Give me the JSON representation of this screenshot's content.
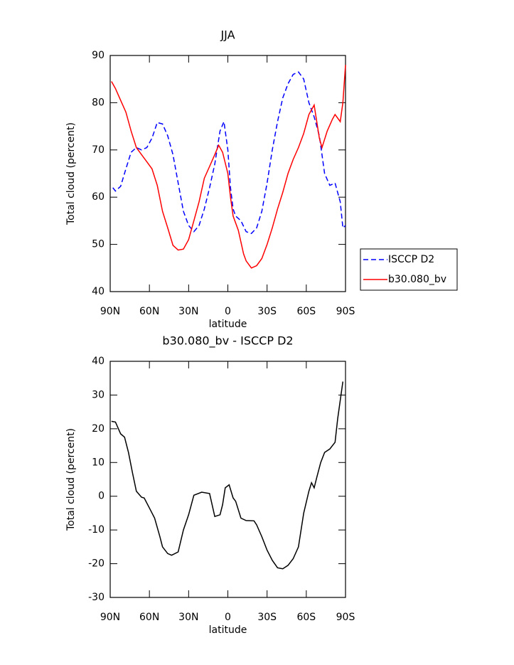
{
  "chart_data": [
    {
      "type": "line",
      "title": "JJA",
      "xlabel": "latitude",
      "ylabel": "Total cloud (percent)",
      "xlim": [
        -90,
        90
      ],
      "xticks": [
        {
          "value": -90,
          "label": "90N"
        },
        {
          "value": -60,
          "label": "60N"
        },
        {
          "value": -30,
          "label": "30N"
        },
        0,
        {
          "value": 30,
          "label": "30S"
        },
        {
          "value": 60,
          "label": "60S"
        },
        {
          "value": 90,
          "label": "90S"
        }
      ],
      "ylim": [
        40,
        90
      ],
      "yticks": [
        40,
        50,
        60,
        70,
        80,
        90
      ],
      "legend": "outside right",
      "series": [
        {
          "name": "ISCCP D2",
          "color": "#0000ff",
          "dash": true,
          "x": [
            -88,
            -86,
            -82,
            -78,
            -74,
            -70,
            -66,
            -62,
            -58,
            -54,
            -50,
            -46,
            -42,
            -38,
            -34,
            -30,
            -26,
            -22,
            -18,
            -14,
            -10,
            -6,
            -3,
            0,
            2,
            4,
            6,
            10,
            14,
            18,
            22,
            26,
            30,
            34,
            38,
            42,
            46,
            50,
            54,
            58,
            62,
            66,
            70,
            74,
            78,
            82,
            86,
            88,
            90
          ],
          "values": [
            62,
            61.3,
            62.3,
            66,
            69.5,
            70.5,
            70,
            70.5,
            72.5,
            75.8,
            75.5,
            73,
            69,
            63,
            57,
            54,
            52.7,
            54,
            57.5,
            62,
            67,
            74,
            76,
            70,
            62,
            57.5,
            56,
            55,
            52.7,
            52.3,
            53.5,
            57,
            63,
            70,
            76,
            81,
            84,
            86,
            86.5,
            85,
            80,
            77,
            73,
            65,
            62.5,
            63,
            59,
            53.5,
            54
          ]
        },
        {
          "name": "b30.080_bv",
          "color": "#ff0000",
          "dash": false,
          "x": [
            -89,
            -86,
            -82,
            -78,
            -74,
            -70,
            -66,
            -62,
            -58,
            -54,
            -50,
            -46,
            -42,
            -38,
            -34,
            -30,
            -26,
            -22,
            -18,
            -14,
            -10,
            -7,
            -4,
            0,
            2,
            4,
            8,
            12,
            14,
            18,
            22,
            26,
            30,
            34,
            38,
            42,
            46,
            50,
            54,
            58,
            62,
            66,
            70,
            72,
            76,
            80,
            82,
            86,
            88,
            90
          ],
          "values": [
            84.5,
            83,
            80.5,
            78,
            74,
            70.5,
            69,
            67.5,
            66,
            62.5,
            57,
            53.5,
            49.8,
            48.8,
            49,
            51,
            55,
            59,
            64,
            66.5,
            69,
            71,
            69.5,
            65,
            60,
            56,
            53,
            48,
            46.5,
            45,
            45.5,
            47,
            50,
            53.5,
            57.5,
            61,
            65,
            68,
            70.5,
            73.5,
            77.5,
            79.5,
            72.5,
            70.5,
            74,
            76.5,
            77.5,
            76,
            80,
            88
          ]
        }
      ]
    },
    {
      "type": "line",
      "title": "b30.080_bv - ISCCP D2",
      "xlabel": "latitude",
      "ylabel": "Total cloud (percent)",
      "xlim": [
        -90,
        90
      ],
      "xticks": [
        {
          "value": -90,
          "label": "90N"
        },
        {
          "value": -60,
          "label": "60N"
        },
        {
          "value": -30,
          "label": "30N"
        },
        0,
        {
          "value": 30,
          "label": "30S"
        },
        {
          "value": 60,
          "label": "60S"
        },
        {
          "value": 90,
          "label": "90S"
        }
      ],
      "ylim": [
        -30,
        40
      ],
      "yticks": [
        -30,
        -20,
        -10,
        0,
        10,
        20,
        30,
        40
      ],
      "series": [
        {
          "color": "#000000",
          "dash": false,
          "x": [
            -89,
            -86,
            -82,
            -79,
            -76,
            -73,
            -70,
            -66,
            -64,
            -60,
            -56,
            -52,
            -50,
            -46,
            -43,
            -38,
            -34,
            -30,
            -26,
            -20,
            -14,
            -10,
            -6,
            -4,
            -2,
            1,
            4,
            6,
            10,
            14,
            20,
            22,
            26,
            30,
            34,
            38,
            42,
            46,
            50,
            54,
            58,
            62,
            64,
            66,
            68,
            71,
            74,
            78,
            82,
            84,
            88
          ],
          "values": [
            22.2,
            22,
            18.5,
            17.5,
            13,
            7,
            1.5,
            -0.3,
            -0.5,
            -3.5,
            -6.5,
            -12,
            -15,
            -17,
            -17.5,
            -16.5,
            -10,
            -5.5,
            0.3,
            1.2,
            0.8,
            -6,
            -5.5,
            -2.5,
            2.5,
            3.4,
            -0.5,
            -1.5,
            -6.5,
            -7.2,
            -7.3,
            -8.5,
            -12,
            -16,
            -19,
            -21.2,
            -21.5,
            -20.5,
            -18.5,
            -15,
            -5,
            1.5,
            4,
            2.5,
            5.5,
            10,
            13,
            14,
            16,
            23,
            34
          ]
        }
      ]
    }
  ]
}
